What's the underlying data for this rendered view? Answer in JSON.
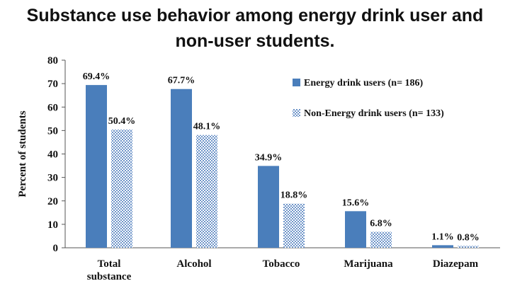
{
  "title_line1": "Substance use behavior among energy drink user and",
  "title_line2": "non-user students.",
  "chart_data": {
    "type": "bar",
    "title": "Substance use behavior among energy drink user and non-user students.",
    "ylabel": "Percent of students",
    "xlabel": "",
    "ylim": [
      0,
      80
    ],
    "yticks": [
      0,
      10,
      20,
      30,
      40,
      50,
      60,
      70,
      80
    ],
    "grid": false,
    "legend_position": "top-right",
    "categories": [
      [
        "Total",
        "substance"
      ],
      [
        "Alcohol"
      ],
      [
        "Tobacco"
      ],
      [
        "Marijuana"
      ],
      [
        "Diazepam"
      ]
    ],
    "series": [
      {
        "name": "Energy drink users (n= 186)",
        "values": [
          69.4,
          67.7,
          34.9,
          15.6,
          1.1
        ],
        "labels": [
          "69.4%",
          "67.7%",
          "34.9%",
          "15.6%",
          "1.1%"
        ],
        "color": "#4a7ebb",
        "pattern": "solid"
      },
      {
        "name": "Non-Energy drink users (n= 133)",
        "values": [
          50.4,
          48.1,
          18.8,
          6.8,
          0.8
        ],
        "labels": [
          "50.4%",
          "48.1%",
          "18.8%",
          "6.8%",
          "0.8%"
        ],
        "color": "#4a7ebb",
        "pattern": "checker"
      }
    ]
  }
}
